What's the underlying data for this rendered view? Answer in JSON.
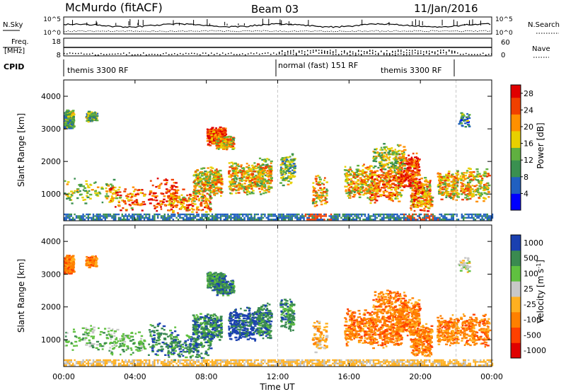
{
  "header": {
    "station": "McMurdo (fitACF)",
    "beam": "Beam 03",
    "date": "11/Jan/2016"
  },
  "top_panels": {
    "nsky_label": "N.Sky",
    "nsearch_label": "N.Search",
    "nsky_ticks": [
      "10^5",
      "10^0"
    ],
    "nsearch_ticks": [
      "10^5",
      "10^0"
    ],
    "freq_label": "Freq.",
    "freq_unit": "[MHz]",
    "freq_ticks": [
      "18",
      "8"
    ],
    "nave_label": "Nave",
    "nave_ticks": [
      "60",
      "0"
    ],
    "cpid_label": "CPID",
    "cpid_segments": [
      {
        "label": "themis 3300 RF"
      },
      {
        "label": "normal (fast) 151 RF"
      },
      {
        "label": "themis 3300 RF"
      }
    ]
  },
  "colors": {
    "power_scale": [
      "#0000ff",
      "#2060c0",
      "#3a9050",
      "#60b040",
      "#e8d000",
      "#ff9000",
      "#f04000",
      "#e00000"
    ],
    "velocity_scale": [
      "#e00000",
      "#ff4000",
      "#ff8000",
      "#ffb020",
      "#c8c8c8",
      "#60c040",
      "#3a8a50",
      "#1a40b0"
    ],
    "gray": "#c0c0c0"
  },
  "chart_data": [
    {
      "type": "heatmap",
      "name": "power",
      "xlabel": "Time UT",
      "ylabel": "Slant Range [km]",
      "x_ticks": [
        "00:00",
        "04:00",
        "08:00",
        "12:00",
        "16:00",
        "20:00",
        "00:00"
      ],
      "xlim_hours": [
        0,
        24
      ],
      "ylim": [
        180,
        4500
      ],
      "y_ticks": [
        "4000",
        "3000",
        "2000",
        "1000"
      ],
      "y_tick_values": [
        4000,
        3000,
        2000,
        1000
      ],
      "colorbar": {
        "label": "Power [dB]",
        "range": [
          0,
          30
        ],
        "ticks": [
          "28",
          "24",
          "20",
          "16",
          "12",
          "8",
          "4"
        ],
        "tick_values": [
          28,
          24,
          20,
          16,
          12,
          8,
          4
        ]
      }
    },
    {
      "type": "heatmap",
      "name": "velocity",
      "xlabel": "Time UT",
      "ylabel": "Slant Range [km]",
      "x_ticks": [
        "00:00",
        "04:00",
        "08:00",
        "12:00",
        "16:00",
        "20:00",
        "00:00"
      ],
      "xlim_hours": [
        0,
        24
      ],
      "ylim": [
        180,
        4500
      ],
      "y_ticks": [
        "4000",
        "3000",
        "2000",
        "1000"
      ],
      "y_tick_values": [
        4000,
        3000,
        2000,
        1000
      ],
      "colorbar": {
        "label": "Velocity [m s",
        "label_sup": "-1",
        "label_end": "]",
        "ticks": [
          "1000",
          "500",
          "100",
          "25",
          "-25",
          "-100",
          "-500",
          "-1000"
        ]
      }
    }
  ]
}
